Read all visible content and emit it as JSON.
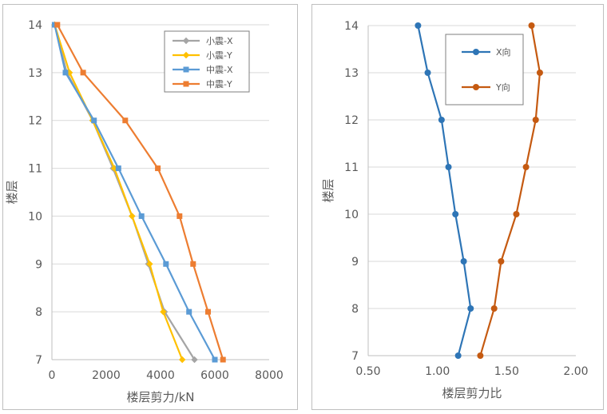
{
  "chart_data": [
    {
      "type": "line",
      "title": "",
      "xlabel": "楼层剪力/kN",
      "ylabel": "楼层",
      "xlim": [
        0,
        8000
      ],
      "ylim": [
        7,
        14
      ],
      "xticks": [
        "0",
        "2000",
        "4000",
        "6000",
        "8000"
      ],
      "yticks": [
        "7",
        "8",
        "9",
        "10",
        "11",
        "12",
        "13",
        "14"
      ],
      "grid": "horizontal",
      "legend_position": "top-right",
      "series": [
        {
          "name": "小震-X",
          "color": "#a5a5a5",
          "marker": "diamond",
          "x": [
            5250,
            4150,
            3550,
            2950,
            2250,
            1500,
            550,
            100
          ],
          "y": [
            7,
            8,
            9,
            10,
            11,
            12,
            13,
            14
          ]
        },
        {
          "name": "小震-Y",
          "color": "#ffc000",
          "marker": "diamond",
          "x": [
            4800,
            4100,
            3600,
            2950,
            2300,
            1500,
            650,
            100
          ],
          "y": [
            7,
            8,
            9,
            10,
            11,
            12,
            13,
            14
          ]
        },
        {
          "name": "中震-X",
          "color": "#5b9bd5",
          "marker": "square",
          "x": [
            6000,
            5050,
            4200,
            3300,
            2450,
            1550,
            500,
            100
          ],
          "y": [
            7,
            8,
            9,
            10,
            11,
            12,
            13,
            14
          ]
        },
        {
          "name": "中震-Y",
          "color": "#ed7d31",
          "marker": "square",
          "x": [
            6300,
            5750,
            5200,
            4700,
            3900,
            2700,
            1150,
            200
          ],
          "y": [
            7,
            8,
            9,
            10,
            11,
            12,
            13,
            14
          ]
        }
      ]
    },
    {
      "type": "line",
      "title": "",
      "xlabel": "楼层剪力比",
      "ylabel": "楼层",
      "xlim": [
        0.5,
        2.0
      ],
      "ylim": [
        7,
        14
      ],
      "xticks": [
        "0.50",
        "1.00",
        "1.50",
        "2.00"
      ],
      "yticks": [
        "7",
        "8",
        "9",
        "10",
        "11",
        "12",
        "13",
        "14"
      ],
      "grid": "horizontal",
      "legend_position": "top-center",
      "series": [
        {
          "name": "X向",
          "color": "#2e75b6",
          "marker": "circle",
          "x": [
            1.15,
            1.24,
            1.19,
            1.13,
            1.08,
            1.03,
            0.93,
            0.86
          ],
          "y": [
            7,
            8,
            9,
            10,
            11,
            12,
            13,
            14
          ]
        },
        {
          "name": "Y向",
          "color": "#c55a11",
          "marker": "circle",
          "x": [
            1.31,
            1.41,
            1.46,
            1.57,
            1.64,
            1.71,
            1.74,
            1.68
          ],
          "y": [
            7,
            8,
            9,
            10,
            11,
            12,
            13,
            14
          ]
        }
      ]
    }
  ]
}
